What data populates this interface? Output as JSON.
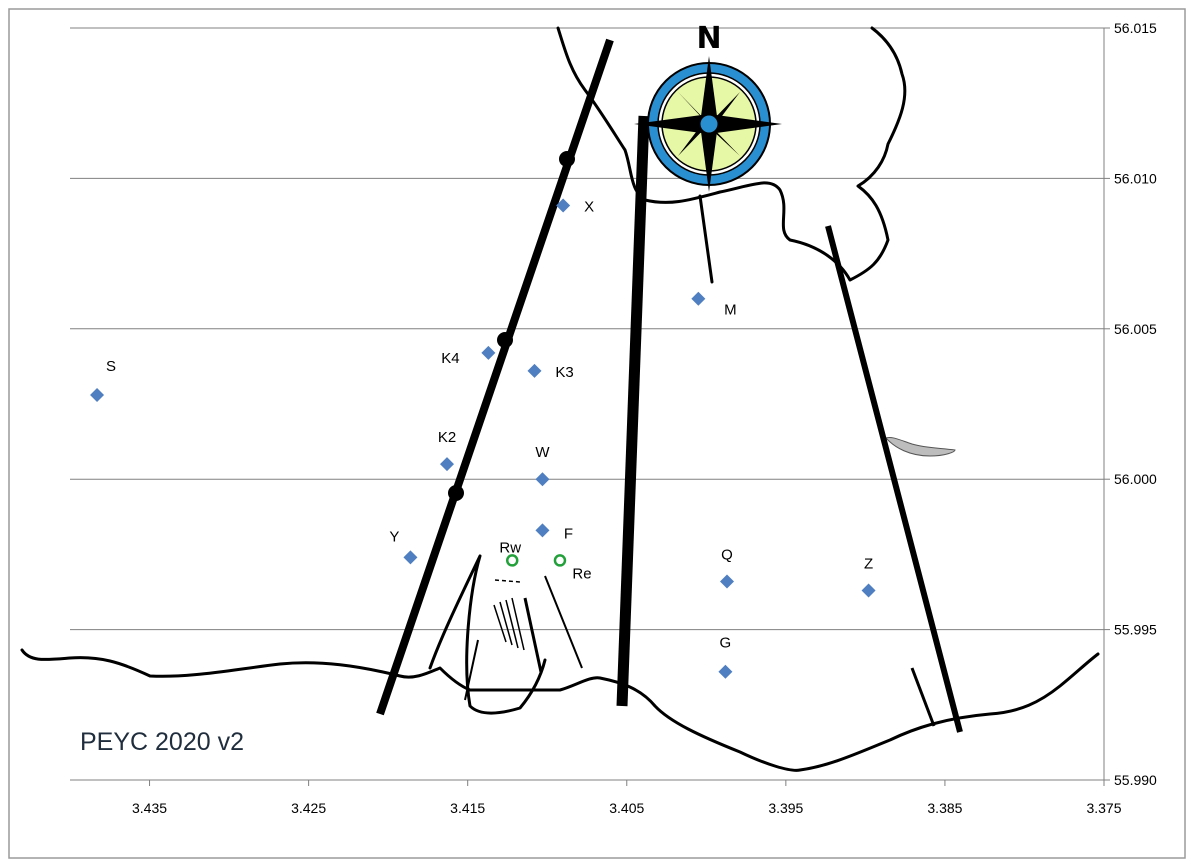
{
  "title": "PEYC 2020 v2",
  "compass": {
    "north_label": "N"
  },
  "colors": {
    "mark": "#4f7fc1",
    "launch": "#22a03a",
    "line": "#000000",
    "grid": "#808080",
    "compass_ring": "#2a8fd0",
    "compass_face": "#e6f7a6"
  },
  "chart_data": {
    "type": "scatter",
    "xlim": [
      3.375,
      3.44
    ],
    "ylim": [
      55.99,
      56.015
    ],
    "x_axis_reversed": true,
    "grid": "horizontal",
    "x_ticks": [
      "3.435",
      "3.425",
      "3.415",
      "3.405",
      "3.395",
      "3.385",
      "3.375"
    ],
    "y_ticks": [
      "56.015",
      "56.010",
      "56.005",
      "56.000",
      "55.995",
      "55.990"
    ],
    "marks": [
      {
        "label": "S",
        "x": 3.4383,
        "y": 56.0028
      },
      {
        "label": "X",
        "x": 3.409,
        "y": 56.0091
      },
      {
        "label": "M",
        "x": 3.4005,
        "y": 56.006
      },
      {
        "label": "K4",
        "x": 3.4137,
        "y": 56.0042
      },
      {
        "label": "K3",
        "x": 3.4108,
        "y": 56.0036
      },
      {
        "label": "K2",
        "x": 3.4163,
        "y": 56.0005
      },
      {
        "label": "W",
        "x": 3.4103,
        "y": 56.0
      },
      {
        "label": "F",
        "x": 3.4103,
        "y": 55.9983
      },
      {
        "label": "Y",
        "x": 3.4186,
        "y": 55.9974
      },
      {
        "label": "Q",
        "x": 3.3987,
        "y": 55.9966
      },
      {
        "label": "Z",
        "x": 3.3898,
        "y": 55.9963
      },
      {
        "label": "G",
        "x": 3.3988,
        "y": 55.9936
      }
    ],
    "launch_points": [
      {
        "label": "Rw",
        "x": 3.4122,
        "y": 55.9973
      },
      {
        "label": "Re",
        "x": 3.4092,
        "y": 55.9973
      }
    ]
  }
}
